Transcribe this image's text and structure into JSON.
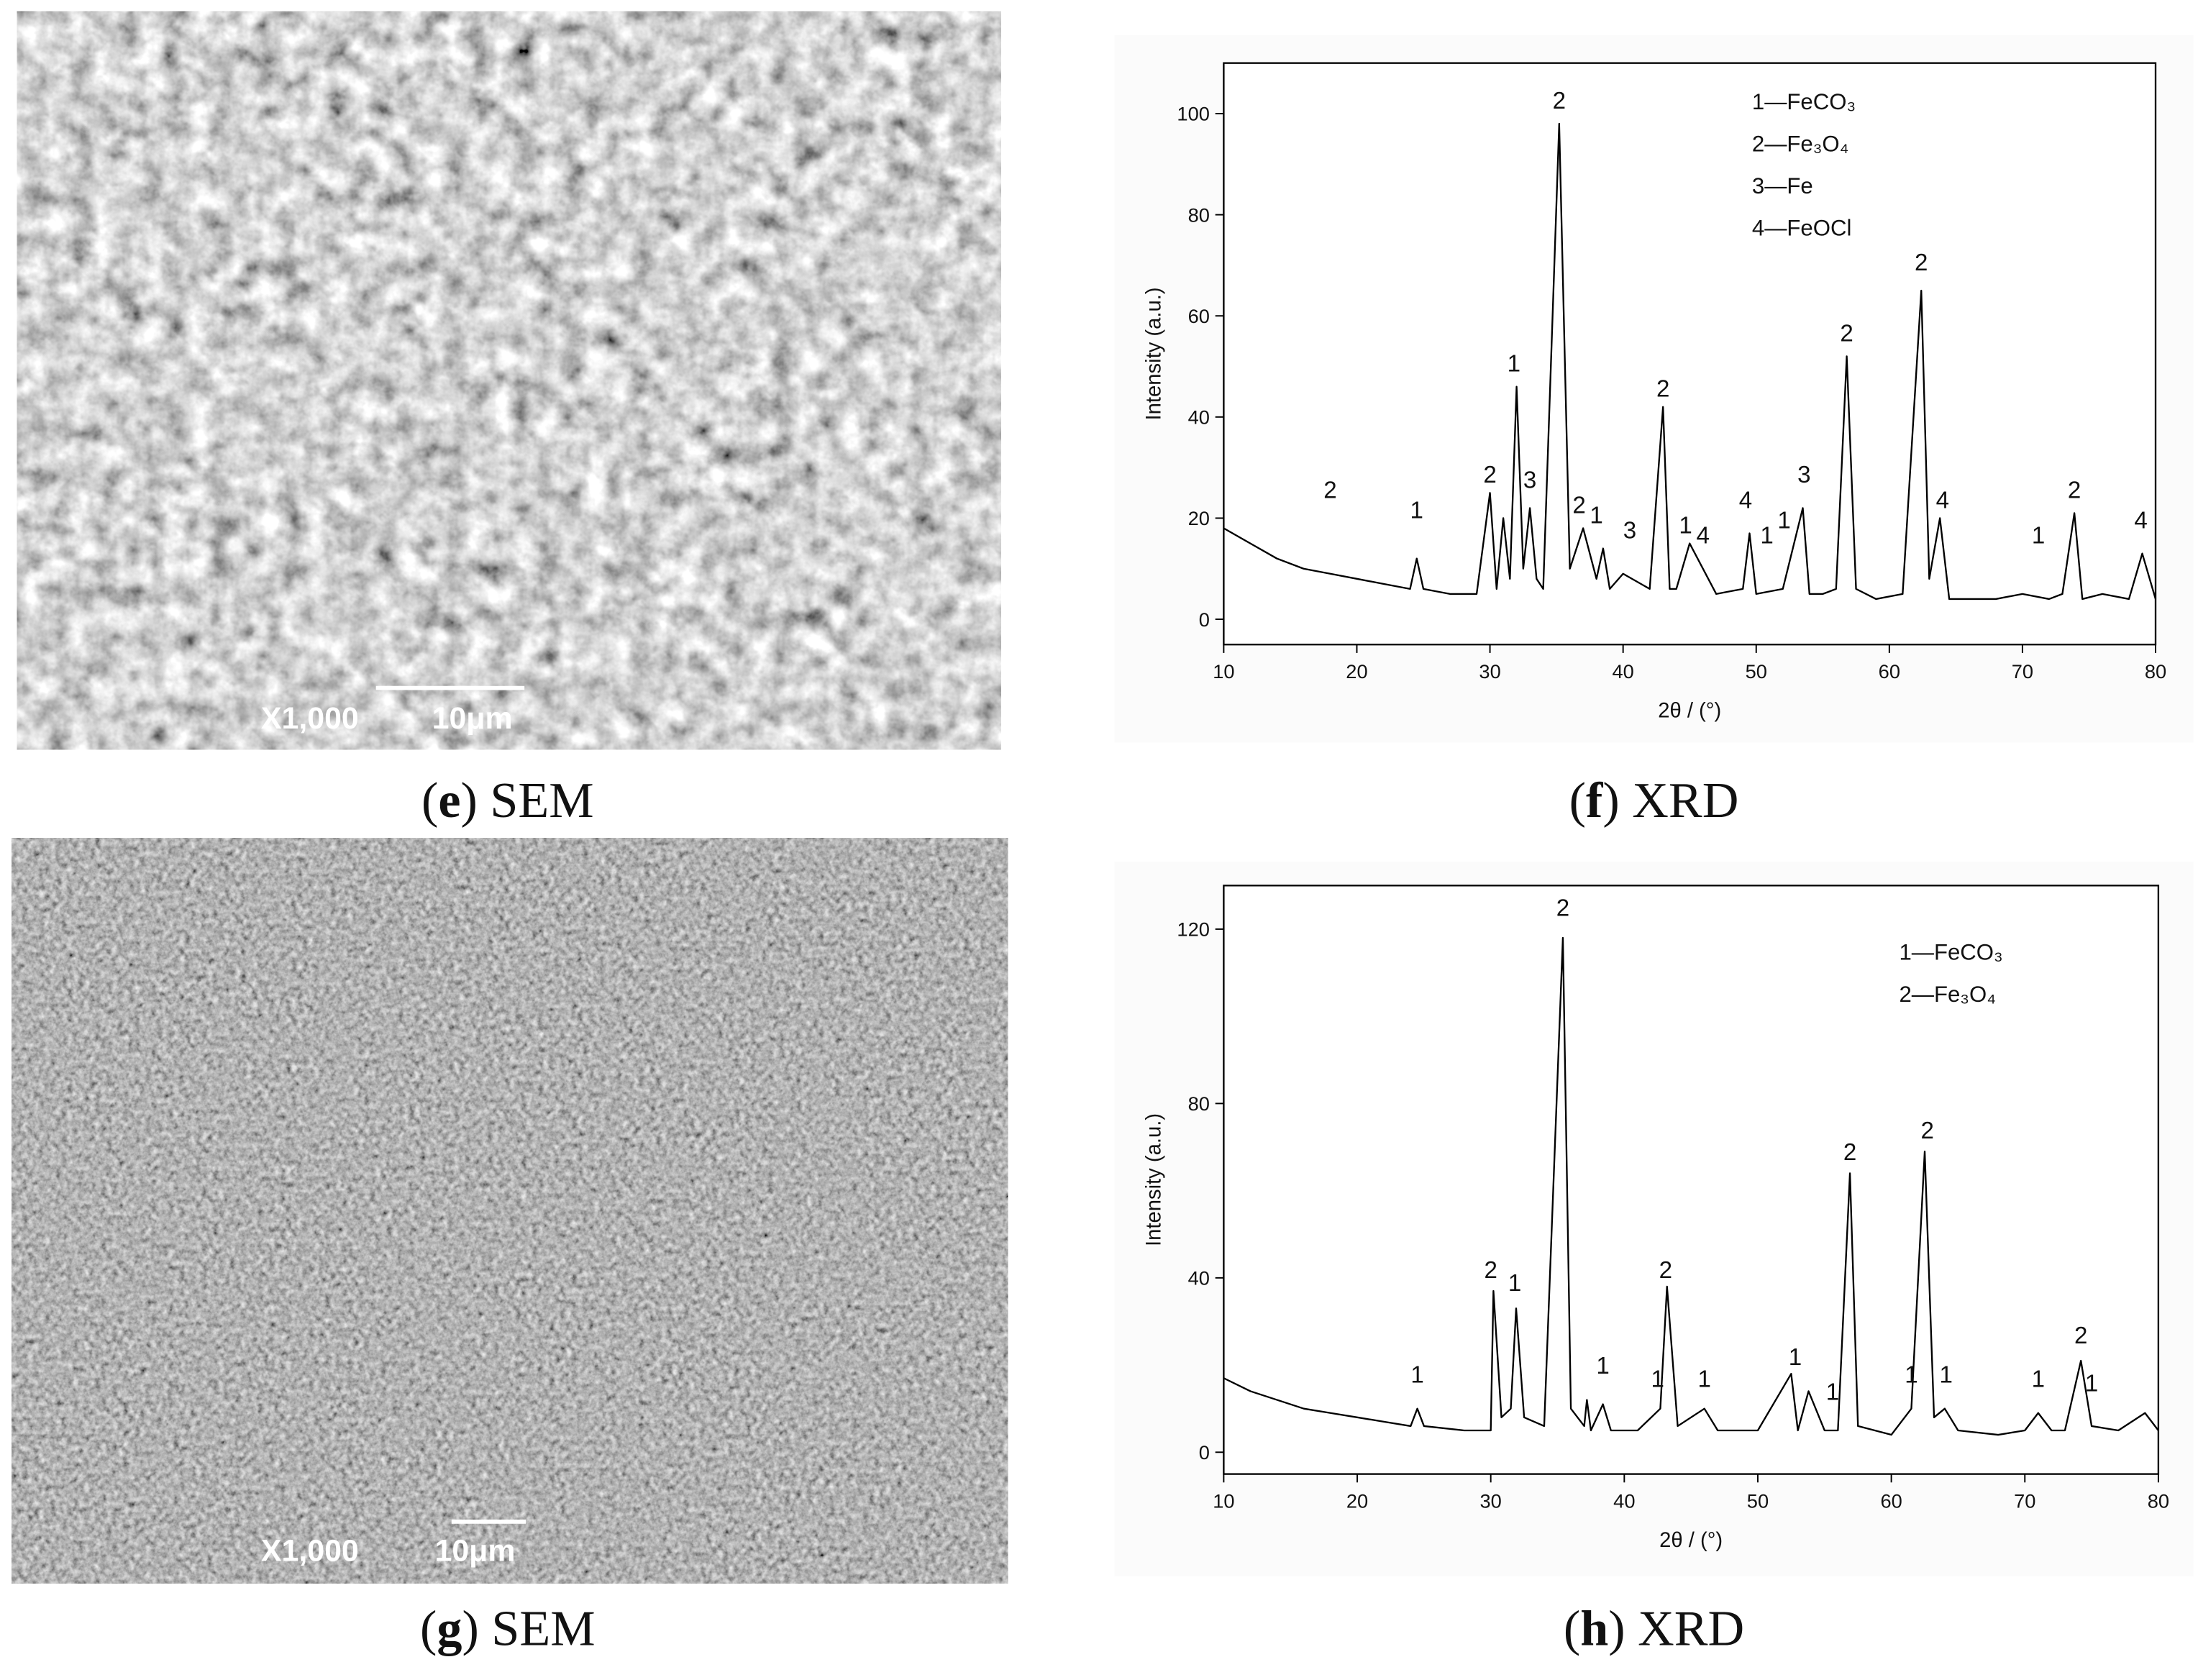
{
  "panels": [
    {
      "caption": [
        "(",
        "e",
        ") SEM"
      ],
      "magnification": "X1,000",
      "scale_bar": "10μm"
    },
    {
      "caption": [
        "(",
        "f",
        ") XRD"
      ]
    },
    {
      "caption": [
        "(",
        "g",
        ") SEM"
      ],
      "magnification": "X1,000",
      "scale_bar": "10μm"
    },
    {
      "caption": [
        "(",
        "h",
        ") XRD"
      ]
    }
  ],
  "chart_data": [
    {
      "type": "line",
      "x_label": "2θ / (°)",
      "y_label": "Intensity (a.u.)",
      "color": "#000000",
      "xlim": [
        10,
        80
      ],
      "xticks": [
        10,
        20,
        30,
        40,
        50,
        60,
        70,
        80
      ],
      "ylim": [
        -5,
        110
      ],
      "yticks": [
        0,
        20,
        40,
        60,
        80,
        100
      ],
      "legend": [
        "1—FeCO₃",
        "2—Fe₃O₄",
        "3—Fe",
        "4—FeOCl"
      ],
      "x": [
        10,
        12,
        14,
        16,
        18,
        20,
        22,
        24,
        24.5,
        25,
        27,
        29,
        30,
        30.5,
        31,
        31.5,
        32,
        32.5,
        33,
        33.5,
        34,
        35.2,
        36,
        37,
        38,
        38.5,
        39,
        40,
        42,
        43,
        43.5,
        44,
        45,
        47,
        49,
        49.5,
        50,
        52,
        53.5,
        54,
        55,
        56,
        56.8,
        57.5,
        59,
        61,
        62.4,
        63,
        63.8,
        64.5,
        66,
        68,
        70,
        72,
        73,
        73.9,
        74.5,
        76,
        78,
        79,
        80
      ],
      "values": [
        18,
        15,
        12,
        10,
        9,
        8,
        7,
        6,
        12,
        6,
        5,
        5,
        25,
        6,
        20,
        8,
        46,
        10,
        22,
        8,
        6,
        98,
        10,
        18,
        8,
        14,
        6,
        9,
        6,
        42,
        6,
        6,
        15,
        5,
        6,
        17,
        5,
        6,
        22,
        5,
        5,
        6,
        52,
        6,
        4,
        5,
        65,
        8,
        20,
        4,
        4,
        4,
        5,
        4,
        5,
        21,
        4,
        5,
        4,
        13,
        4
      ],
      "annotations": [
        {
          "label": "2",
          "x": 18,
          "y": 24
        },
        {
          "label": "1",
          "x": 24.5,
          "y": 20
        },
        {
          "label": "2",
          "x": 30,
          "y": 27
        },
        {
          "label": "1",
          "x": 31.8,
          "y": 49
        },
        {
          "label": "3",
          "x": 33,
          "y": 26
        },
        {
          "label": "2",
          "x": 35.2,
          "y": 101
        },
        {
          "label": "2",
          "x": 36.7,
          "y": 21
        },
        {
          "label": "1",
          "x": 38,
          "y": 19
        },
        {
          "label": "3",
          "x": 40.5,
          "y": 16
        },
        {
          "label": "2",
          "x": 43,
          "y": 44
        },
        {
          "label": "1",
          "x": 44.7,
          "y": 17
        },
        {
          "label": "4",
          "x": 46,
          "y": 15
        },
        {
          "label": "4",
          "x": 49.2,
          "y": 22
        },
        {
          "label": "1",
          "x": 50.8,
          "y": 15
        },
        {
          "label": "1",
          "x": 52.1,
          "y": 18
        },
        {
          "label": "3",
          "x": 53.6,
          "y": 27
        },
        {
          "label": "2",
          "x": 56.8,
          "y": 55
        },
        {
          "label": "2",
          "x": 62.4,
          "y": 69
        },
        {
          "label": "4",
          "x": 64,
          "y": 22
        },
        {
          "label": "1",
          "x": 71.2,
          "y": 15
        },
        {
          "label": "2",
          "x": 73.9,
          "y": 24
        },
        {
          "label": "4",
          "x": 78.9,
          "y": 18
        }
      ]
    },
    {
      "type": "line",
      "x_label": "2θ / (°)",
      "y_label": "Intensity (a.u.)",
      "color": "#000000",
      "xlim": [
        10,
        80
      ],
      "xticks": [
        10,
        20,
        30,
        40,
        50,
        60,
        70,
        80
      ],
      "ylim": [
        -5,
        130
      ],
      "yticks": [
        0,
        40,
        80,
        120
      ],
      "legend": [
        "1—FeCO₃",
        "2—Fe₃O₄"
      ],
      "x": [
        10,
        12,
        14,
        16,
        18,
        20,
        22,
        24,
        24.5,
        25,
        28,
        30,
        30.2,
        30.8,
        31.5,
        31.9,
        32.5,
        34,
        35.4,
        36,
        37,
        37.2,
        37.5,
        38.4,
        39,
        41,
        42.7,
        43.2,
        44,
        46,
        47,
        50,
        52.5,
        53,
        53.8,
        55,
        56,
        56.9,
        57.5,
        60,
        61.5,
        62.5,
        63.2,
        64,
        65,
        68,
        70,
        71,
        72,
        73,
        74.2,
        75,
        77,
        79,
        80
      ],
      "values": [
        17,
        14,
        12,
        10,
        9,
        8,
        7,
        6,
        10,
        6,
        5,
        5,
        37,
        8,
        10,
        33,
        8,
        6,
        118,
        10,
        6,
        12,
        5,
        11,
        5,
        5,
        10,
        38,
        6,
        10,
        5,
        5,
        18,
        5,
        14,
        5,
        5,
        64,
        6,
        4,
        10,
        69,
        8,
        10,
        5,
        4,
        5,
        9,
        5,
        5,
        21,
        6,
        5,
        9,
        5
      ],
      "annotations": [
        {
          "label": "1",
          "x": 24.5,
          "y": 16
        },
        {
          "label": "2",
          "x": 30,
          "y": 40
        },
        {
          "label": "1",
          "x": 31.8,
          "y": 37
        },
        {
          "label": "2",
          "x": 35.4,
          "y": 123
        },
        {
          "label": "1",
          "x": 38.4,
          "y": 18
        },
        {
          "label": "1",
          "x": 42.5,
          "y": 15
        },
        {
          "label": "2",
          "x": 43.1,
          "y": 40
        },
        {
          "label": "1",
          "x": 46,
          "y": 15
        },
        {
          "label": "1",
          "x": 52.8,
          "y": 20
        },
        {
          "label": "1",
          "x": 55.6,
          "y": 12
        },
        {
          "label": "2",
          "x": 56.9,
          "y": 67
        },
        {
          "label": "1",
          "x": 61.5,
          "y": 16
        },
        {
          "label": "2",
          "x": 62.7,
          "y": 72
        },
        {
          "label": "1",
          "x": 64.1,
          "y": 16
        },
        {
          "label": "1",
          "x": 71,
          "y": 15
        },
        {
          "label": "2",
          "x": 74.2,
          "y": 25
        },
        {
          "label": "1",
          "x": 75,
          "y": 14
        }
      ]
    }
  ]
}
